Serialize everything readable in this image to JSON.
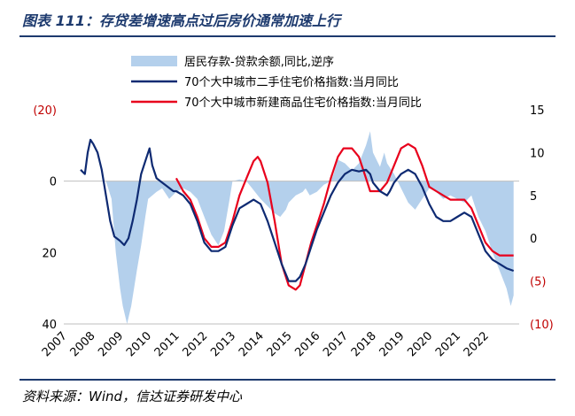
{
  "figure": {
    "title": "图表 111：存贷差增速高点过后房价通常加速上行",
    "source": "资料来源：Wind，信达证券研发中心"
  },
  "chart_data": {
    "type": "area+line",
    "x_axis": {
      "ticks": [
        "2007",
        "2008",
        "2009",
        "2010",
        "2011",
        "2012",
        "2013",
        "2014",
        "2015",
        "2016",
        "2017",
        "2018",
        "2019",
        "2020",
        "2021",
        "2022"
      ],
      "range": [
        2007.0,
        2023.2
      ]
    },
    "left_axis": {
      "ticks": [
        "(20)",
        "0",
        "20",
        "40"
      ],
      "tick_values": [
        -20,
        0,
        20,
        40
      ],
      "range": [
        -20,
        40
      ],
      "reversed": true,
      "negative_color": "#c00000"
    },
    "right_axis": {
      "ticks": [
        "15",
        "10",
        "5",
        "0",
        "(5)",
        "(10)"
      ],
      "tick_values": [
        15,
        10,
        5,
        0,
        -5,
        -10
      ],
      "range": [
        -10,
        15
      ],
      "negative_color": "#c00000"
    },
    "colors": {
      "area": "#b4d0ec",
      "secondhand": "#0e2a72",
      "newhome": "#e8001c"
    },
    "series": [
      {
        "name": "居民存款-贷款余额,同比,逆序",
        "kind": "area",
        "axis": "left",
        "points": [
          [
            2008.0,
            0
          ],
          [
            2008.5,
            0
          ],
          [
            2008.7,
            5
          ],
          [
            2008.85,
            20
          ],
          [
            2009.0,
            30
          ],
          [
            2009.1,
            35
          ],
          [
            2009.25,
            40
          ],
          [
            2009.4,
            35
          ],
          [
            2009.5,
            30
          ],
          [
            2009.6,
            25
          ],
          [
            2009.75,
            18
          ],
          [
            2009.9,
            10
          ],
          [
            2010.0,
            5
          ],
          [
            2010.3,
            3
          ],
          [
            2010.5,
            2
          ],
          [
            2010.75,
            5
          ],
          [
            2011.0,
            3
          ],
          [
            2011.25,
            2
          ],
          [
            2011.5,
            3
          ],
          [
            2011.75,
            5
          ],
          [
            2012.0,
            10
          ],
          [
            2012.25,
            15
          ],
          [
            2012.5,
            18
          ],
          [
            2012.7,
            14
          ],
          [
            2012.9,
            5
          ],
          [
            2013.0,
            0
          ],
          [
            2013.25,
            -0.5
          ],
          [
            2013.5,
            0
          ],
          [
            2013.7,
            2
          ],
          [
            2013.9,
            4
          ],
          [
            2014.0,
            5
          ],
          [
            2014.25,
            7
          ],
          [
            2014.5,
            9
          ],
          [
            2014.7,
            10
          ],
          [
            2014.9,
            8
          ],
          [
            2015.0,
            6
          ],
          [
            2015.25,
            4
          ],
          [
            2015.5,
            3
          ],
          [
            2015.6,
            2
          ],
          [
            2015.75,
            4
          ],
          [
            2016.0,
            3
          ],
          [
            2016.25,
            1
          ],
          [
            2016.5,
            0
          ],
          [
            2016.6,
            -2
          ],
          [
            2016.75,
            -6
          ],
          [
            2017.0,
            -5
          ],
          [
            2017.25,
            -3
          ],
          [
            2017.5,
            -5
          ],
          [
            2017.75,
            -10
          ],
          [
            2017.9,
            -14
          ],
          [
            2018.0,
            -8
          ],
          [
            2018.25,
            -4
          ],
          [
            2018.4,
            -8
          ],
          [
            2018.5,
            -5
          ],
          [
            2018.75,
            -2
          ],
          [
            2019.0,
            2
          ],
          [
            2019.25,
            6
          ],
          [
            2019.5,
            8
          ],
          [
            2019.75,
            5
          ],
          [
            2020.0,
            2
          ],
          [
            2020.25,
            3
          ],
          [
            2020.5,
            5
          ],
          [
            2020.75,
            4
          ],
          [
            2021.0,
            5
          ],
          [
            2021.25,
            6
          ],
          [
            2021.5,
            4
          ],
          [
            2021.75,
            10
          ],
          [
            2022.0,
            14
          ],
          [
            2022.25,
            20
          ],
          [
            2022.5,
            25
          ],
          [
            2022.75,
            30
          ],
          [
            2022.9,
            35
          ],
          [
            2023.0,
            32
          ],
          [
            2023.0,
            0
          ]
        ]
      },
      {
        "name": "70个大中城市二手住宅价格指数:当月同比",
        "kind": "line",
        "axis": "right",
        "points": [
          [
            2007.6,
            8
          ],
          [
            2007.75,
            7.5
          ],
          [
            2007.85,
            10
          ],
          [
            2007.95,
            11.5
          ],
          [
            2008.05,
            11.0
          ],
          [
            2008.2,
            10.0
          ],
          [
            2008.35,
            8.0
          ],
          [
            2008.5,
            5.0
          ],
          [
            2008.65,
            2.0
          ],
          [
            2008.8,
            0.2
          ],
          [
            2009.0,
            -0.3
          ],
          [
            2009.15,
            -0.8
          ],
          [
            2009.3,
            0.0
          ],
          [
            2009.45,
            2.0
          ],
          [
            2009.6,
            4.5
          ],
          [
            2009.75,
            7.5
          ],
          [
            2009.95,
            9.5
          ],
          [
            2010.05,
            10.5
          ],
          [
            2010.15,
            8.5
          ],
          [
            2010.3,
            7.0
          ],
          [
            2010.5,
            6.5
          ],
          [
            2010.7,
            6.0
          ],
          [
            2010.9,
            5.5
          ],
          [
            2011.0,
            5.5
          ],
          [
            2011.25,
            5.0
          ],
          [
            2011.5,
            4.0
          ],
          [
            2011.75,
            2.0
          ],
          [
            2012.0,
            -0.5
          ],
          [
            2012.25,
            -1.5
          ],
          [
            2012.5,
            -1.5
          ],
          [
            2012.75,
            -1.0
          ],
          [
            2013.0,
            1.5
          ],
          [
            2013.25,
            3.5
          ],
          [
            2013.5,
            4.0
          ],
          [
            2013.75,
            4.5
          ],
          [
            2014.0,
            4.0
          ],
          [
            2014.25,
            2.0
          ],
          [
            2014.5,
            -0.5
          ],
          [
            2014.75,
            -3.0
          ],
          [
            2015.0,
            -5.0
          ],
          [
            2015.25,
            -5.0
          ],
          [
            2015.4,
            -4.5
          ],
          [
            2015.6,
            -3.0
          ],
          [
            2015.8,
            -1.0
          ],
          [
            2016.0,
            1.0
          ],
          [
            2016.25,
            3.0
          ],
          [
            2016.5,
            5.0
          ],
          [
            2016.75,
            6.5
          ],
          [
            2017.0,
            7.5
          ],
          [
            2017.25,
            8.0
          ],
          [
            2017.5,
            7.8
          ],
          [
            2017.75,
            8.0
          ],
          [
            2017.9,
            7.5
          ],
          [
            2018.0,
            6.5
          ],
          [
            2018.25,
            5.5
          ],
          [
            2018.5,
            5.0
          ],
          [
            2018.6,
            5.5
          ],
          [
            2018.75,
            6.5
          ],
          [
            2019.0,
            7.5
          ],
          [
            2019.25,
            8.0
          ],
          [
            2019.5,
            7.5
          ],
          [
            2019.75,
            6.0
          ],
          [
            2020.0,
            4.0
          ],
          [
            2020.25,
            2.5
          ],
          [
            2020.5,
            2.0
          ],
          [
            2020.75,
            2.0
          ],
          [
            2021.0,
            2.5
          ],
          [
            2021.25,
            3.0
          ],
          [
            2021.5,
            2.5
          ],
          [
            2021.75,
            0.5
          ],
          [
            2022.0,
            -1.5
          ],
          [
            2022.25,
            -2.5
          ],
          [
            2022.5,
            -3.0
          ],
          [
            2022.75,
            -3.5
          ],
          [
            2023.0,
            -3.8
          ]
        ]
      },
      {
        "name": "70个大中城市新建商品住宅价格指数:当月同比",
        "kind": "line",
        "axis": "right",
        "points": [
          [
            2011.0,
            7
          ],
          [
            2011.25,
            5.5
          ],
          [
            2011.5,
            4.5
          ],
          [
            2011.75,
            2.5
          ],
          [
            2012.0,
            0.0
          ],
          [
            2012.25,
            -1.0
          ],
          [
            2012.5,
            -1.0
          ],
          [
            2012.75,
            -0.5
          ],
          [
            2013.0,
            2.0
          ],
          [
            2013.25,
            5.0
          ],
          [
            2013.5,
            7.0
          ],
          [
            2013.75,
            9.0
          ],
          [
            2013.9,
            9.5
          ],
          [
            2014.0,
            9.0
          ],
          [
            2014.25,
            6.5
          ],
          [
            2014.5,
            2.0
          ],
          [
            2014.75,
            -3.0
          ],
          [
            2015.0,
            -5.5
          ],
          [
            2015.25,
            -6.0
          ],
          [
            2015.4,
            -5.5
          ],
          [
            2015.6,
            -3.0
          ],
          [
            2015.8,
            -0.5
          ],
          [
            2016.0,
            1.5
          ],
          [
            2016.25,
            4.0
          ],
          [
            2016.5,
            7.0
          ],
          [
            2016.75,
            9.5
          ],
          [
            2016.95,
            10.5
          ],
          [
            2017.25,
            10.5
          ],
          [
            2017.5,
            9.5
          ],
          [
            2017.75,
            7.0
          ],
          [
            2017.9,
            5.5
          ],
          [
            2018.0,
            5.5
          ],
          [
            2018.25,
            5.5
          ],
          [
            2018.5,
            6.5
          ],
          [
            2018.75,
            8.5
          ],
          [
            2019.0,
            10.5
          ],
          [
            2019.25,
            11.0
          ],
          [
            2019.5,
            10.5
          ],
          [
            2019.75,
            8.5
          ],
          [
            2020.0,
            6.0
          ],
          [
            2020.25,
            5.5
          ],
          [
            2020.5,
            5.0
          ],
          [
            2020.75,
            4.5
          ],
          [
            2021.0,
            4.5
          ],
          [
            2021.25,
            4.5
          ],
          [
            2021.5,
            3.5
          ],
          [
            2021.75,
            1.5
          ],
          [
            2022.0,
            -0.5
          ],
          [
            2022.25,
            -1.5
          ],
          [
            2022.5,
            -2.0
          ],
          [
            2022.75,
            -2.0
          ],
          [
            2023.0,
            -2.0
          ]
        ]
      }
    ]
  }
}
